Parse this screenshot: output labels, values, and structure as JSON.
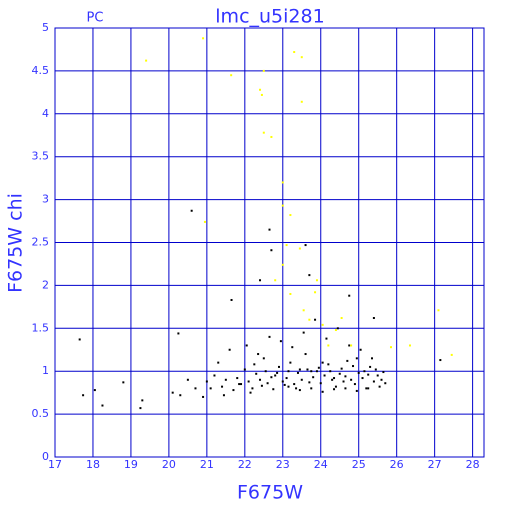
{
  "chart_data": {
    "type": "scatter",
    "title": "lmc_u5i281",
    "annotation": "PC",
    "x_label": "F675W",
    "y_label": "F675W chi",
    "xlim": [
      17,
      28.3
    ],
    "ylim": [
      0,
      5
    ],
    "xticks": [
      17,
      18,
      19,
      20,
      21,
      22,
      23,
      24,
      25,
      26,
      27,
      28
    ],
    "yticks": [
      0,
      0.5,
      1,
      1.5,
      2,
      2.5,
      3,
      3.5,
      4,
      4.5,
      5
    ],
    "grid": true,
    "grid_color": "#0000cc",
    "text_color": "#3333ff",
    "series": [
      {
        "color": "#000000",
        "x": [
          17.65,
          17.74,
          20.6,
          20.25,
          22.65,
          22.7,
          22.4,
          23.6,
          23.7,
          24.75,
          21.65,
          27.15,
          25.4,
          18.25,
          19.25,
          19.3,
          18.8,
          18.05,
          20.1,
          20.3,
          20.5,
          20.7,
          20.9,
          21.0,
          21.2,
          21.4,
          21.5,
          21.7,
          21.8,
          21.9,
          22.0,
          22.1,
          22.2,
          22.3,
          22.4,
          22.5,
          22.6,
          22.7,
          22.8,
          22.9,
          23.0,
          23.1,
          23.2,
          23.3,
          23.4,
          23.5,
          23.6,
          23.7,
          23.8,
          23.9,
          24.0,
          24.1,
          24.2,
          24.3,
          24.4,
          24.5,
          24.6,
          24.7,
          24.8,
          24.9,
          25.0,
          25.1,
          25.2,
          25.3,
          25.4,
          25.5,
          25.6,
          25.7,
          21.3,
          21.6,
          22.05,
          22.35,
          22.65,
          22.95,
          23.25,
          23.55,
          23.85,
          24.15,
          24.45,
          24.75,
          25.05,
          25.35,
          23.15,
          23.45,
          23.75,
          24.05,
          24.35,
          24.65,
          24.95,
          25.25,
          25.55,
          22.15,
          22.45,
          22.75,
          23.05,
          23.35,
          23.65,
          23.95,
          24.25,
          24.55,
          24.85,
          25.15,
          25.45,
          25.65,
          21.1,
          21.45,
          21.85,
          22.25,
          22.55,
          22.85,
          23.15,
          23.45,
          23.75,
          24.05,
          24.35,
          24.65,
          24.95,
          25.25
        ],
        "values": [
          1.37,
          0.72,
          2.87,
          1.44,
          2.65,
          2.41,
          2.06,
          2.47,
          2.12,
          1.88,
          1.83,
          1.13,
          1.62,
          0.6,
          0.57,
          0.66,
          0.87,
          0.78,
          0.75,
          0.72,
          0.9,
          0.8,
          0.7,
          0.88,
          0.95,
          0.82,
          0.9,
          0.78,
          0.92,
          0.85,
          1.02,
          0.88,
          0.8,
          0.97,
          0.9,
          1.15,
          0.86,
          0.93,
          0.95,
          1.05,
          0.88,
          0.92,
          1.1,
          0.85,
          0.98,
          0.9,
          1.2,
          0.87,
          0.93,
          1.0,
          0.86,
          0.95,
          1.08,
          0.9,
          0.82,
          0.97,
          0.88,
          1.12,
          0.9,
          0.85,
          0.98,
          0.92,
          0.8,
          1.05,
          0.88,
          0.95,
          0.9,
          0.86,
          1.1,
          1.25,
          1.3,
          1.2,
          1.4,
          1.35,
          1.28,
          1.45,
          1.6,
          1.38,
          1.5,
          1.3,
          1.25,
          1.15,
          0.82,
          0.78,
          0.8,
          0.76,
          0.79,
          0.8,
          0.77,
          0.8,
          0.82,
          0.75,
          0.83,
          0.79,
          0.84,
          0.8,
          1.02,
          1.04,
          1.0,
          1.03,
          1.06,
          1.0,
          1.02,
          0.99,
          0.8,
          0.72,
          0.85,
          1.08,
          1.0,
          0.98,
          1.0,
          1.02,
          1.0,
          1.1,
          0.92,
          0.94,
          1.15,
          0.96
        ]
      },
      {
        "color": "#ffff00",
        "x": [
          19.4,
          20.9,
          21.64,
          22.5,
          22.4,
          22.45,
          23.3,
          23.5,
          23.5,
          22.5,
          22.7,
          23.0,
          23.0,
          23.2,
          20.95,
          23.1,
          23.45,
          23.0,
          23.2,
          23.85,
          23.55,
          23.7,
          24.05,
          24.4,
          24.55,
          24.2,
          24.8,
          27.1,
          27.45,
          25.85,
          26.35,
          23.9,
          22.8
        ],
        "values": [
          4.62,
          4.88,
          4.45,
          4.5,
          4.28,
          4.22,
          4.72,
          4.66,
          4.14,
          3.78,
          3.73,
          3.2,
          2.93,
          2.82,
          2.74,
          2.47,
          2.43,
          2.24,
          1.9,
          1.92,
          1.71,
          1.6,
          1.54,
          1.48,
          1.62,
          1.3,
          1.3,
          1.71,
          1.19,
          1.28,
          1.3,
          2.06,
          2.06
        ]
      }
    ]
  }
}
